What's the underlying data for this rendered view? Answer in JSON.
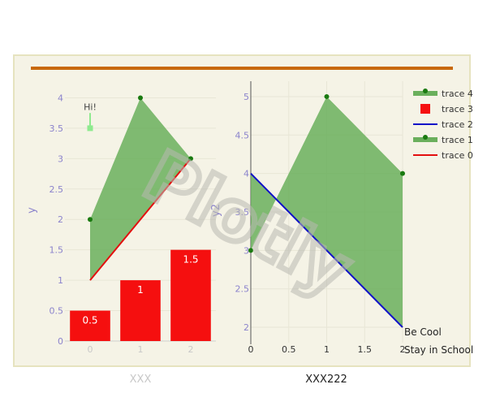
{
  "colors": {
    "panel_bg": "#f5f3e6",
    "panel_border": "#e6e3bf",
    "shape_line": "#c8690b",
    "axis_text": "#8b83cc",
    "axis_tick_left": "#c8c8c8",
    "grid": "#e8e6d6",
    "fill_green": "#6aaf5c",
    "marker_green": "#1a7a10",
    "line_red": "#e30f0f",
    "line_blue": "#1010c8",
    "bar_red": "#f50f0f",
    "marker_light_green": "#8eea8e",
    "watermark": "#b8b8b0",
    "xtitle_left": "#c8c8c8",
    "xtitle_right": "#222222"
  },
  "watermark": "Plotly",
  "chart_data": [
    {
      "type": "bar",
      "subplot": "left",
      "x_title": "XXX",
      "y_title": "y",
      "xlim": [
        -0.5,
        2.5
      ],
      "ylim": [
        0,
        4.3
      ],
      "x_ticks": [
        0,
        1,
        2
      ],
      "y_ticks": [
        0,
        0.5,
        1,
        1.5,
        2,
        2.5,
        3,
        3.5,
        4
      ],
      "x_tick_labels": [
        "0",
        "1",
        "2"
      ],
      "y_tick_labels": [
        "0",
        "0.5",
        "1",
        "1.5",
        "2",
        "2.5",
        "3",
        "3.5",
        "4"
      ],
      "bars": {
        "name": "trace 3",
        "x": [
          0,
          1,
          2
        ],
        "values": [
          0.5,
          1,
          1.5
        ],
        "labels": [
          "0.5",
          "1",
          "1.5"
        ]
      },
      "fill_area": {
        "name": "trace 1",
        "upper": [
          [
            0,
            2
          ],
          [
            1,
            4
          ],
          [
            2,
            3
          ]
        ],
        "lower": [
          [
            0,
            1
          ],
          [
            2,
            3
          ]
        ]
      },
      "red_line": {
        "name": "trace 0",
        "points": [
          [
            0,
            1
          ],
          [
            2,
            3
          ]
        ]
      },
      "marker": {
        "x": 0,
        "y": 3.5,
        "error_plus": 0.25
      },
      "annotation": {
        "text": "Hi!",
        "x": 0,
        "y": 3.85
      }
    },
    {
      "type": "area",
      "subplot": "right",
      "x_title": "XXX222",
      "y_title": "y2",
      "xlim": [
        0,
        2
      ],
      "ylim": [
        1.8,
        5.2
      ],
      "x_ticks": [
        0,
        0.5,
        1,
        1.5,
        2
      ],
      "y_ticks": [
        2,
        2.5,
        3,
        3.5,
        4,
        4.5,
        5
      ],
      "x_tick_labels": [
        "0",
        "0.5",
        "1",
        "1.5",
        "2"
      ],
      "y_tick_labels": [
        "2",
        "2.5",
        "3",
        "3.5",
        "4",
        "4.5",
        "5"
      ],
      "fill_area": {
        "name": "trace 4",
        "upper": [
          [
            0,
            3
          ],
          [
            1,
            5
          ],
          [
            2,
            4
          ]
        ],
        "lower": [
          [
            0,
            4
          ],
          [
            2,
            2
          ]
        ]
      },
      "blue_line": {
        "name": "trace 2",
        "points": [
          [
            0,
            4
          ],
          [
            2,
            2
          ]
        ]
      },
      "end_labels": [
        "Be Cool",
        "Stay in School"
      ]
    }
  ],
  "legend": [
    {
      "name": "trace 4",
      "symbol": "fill-marker"
    },
    {
      "name": "trace 3",
      "symbol": "square"
    },
    {
      "name": "trace 2",
      "symbol": "blue-line"
    },
    {
      "name": "trace 1",
      "symbol": "fill-marker"
    },
    {
      "name": "trace 0",
      "symbol": "red-line"
    }
  ]
}
